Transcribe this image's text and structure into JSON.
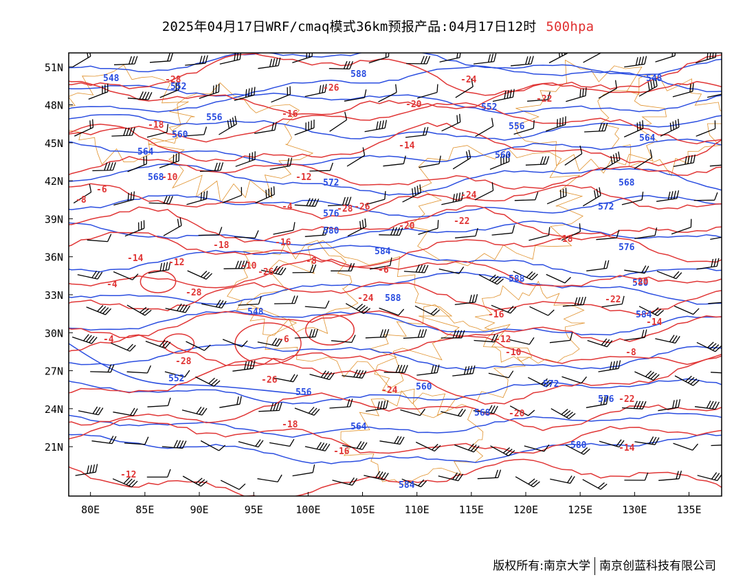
{
  "title": {
    "main": "2025年04月17日WRF/cmaq模式36km预报产品:04月17日12时",
    "level": "500hpa"
  },
  "axes": {
    "lat_labels": [
      "51N",
      "48N",
      "45N",
      "42N",
      "39N",
      "36N",
      "33N",
      "30N",
      "27N",
      "24N",
      "21N"
    ],
    "lon_labels": [
      "80E",
      "85E",
      "90E",
      "95E",
      "100E",
      "105E",
      "110E",
      "115E",
      "120E",
      "125E",
      "130E",
      "135E"
    ]
  },
  "colors": {
    "height_contour": "#2a4de0",
    "temperature_contour": "#e03535",
    "boundary": "#e0902a",
    "wind_barb": "#000000"
  },
  "height_labels": [
    "548",
    "552",
    "556",
    "560",
    "564",
    "568",
    "572",
    "576",
    "580",
    "584",
    "588"
  ],
  "temperature_labels": [
    "-28",
    "-26",
    "-24",
    "-22",
    "-20",
    "-18",
    "-16",
    "-14",
    "-12",
    "-10",
    "-8",
    "-6",
    "-4"
  ],
  "footer": {
    "left": "版权所有:南京大学",
    "right": "南京创蓝科技有限公司"
  }
}
